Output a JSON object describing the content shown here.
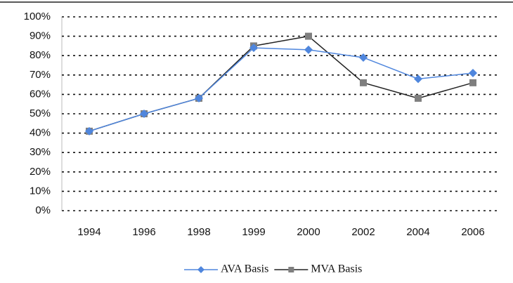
{
  "chart_data": {
    "type": "line",
    "categories": [
      "1994",
      "1996",
      "1998",
      "1999",
      "2000",
      "2002",
      "2004",
      "2006"
    ],
    "series": [
      {
        "name": "AVA Basis",
        "color": "#4f86dd",
        "marker_color": "#4f86dd",
        "marker": "diamond",
        "values": [
          41,
          50,
          58,
          84,
          83,
          79,
          68,
          71
        ]
      },
      {
        "name": "MVA Basis",
        "color": "#222222",
        "marker_color": "#7f7f7f",
        "marker": "square",
        "values": [
          41,
          50,
          58,
          85,
          90,
          66,
          58,
          66
        ]
      }
    ],
    "ylim": [
      0,
      100
    ],
    "yticks": [
      {
        "value": 0,
        "label": "0%"
      },
      {
        "value": 10,
        "label": "10%"
      },
      {
        "value": 20,
        "label": "20%"
      },
      {
        "value": 30,
        "label": "30%"
      },
      {
        "value": 40,
        "label": "40%"
      },
      {
        "value": 50,
        "label": "50%"
      },
      {
        "value": 60,
        "label": "60%"
      },
      {
        "value": 70,
        "label": "70%"
      },
      {
        "value": 80,
        "label": "80%"
      },
      {
        "value": 90,
        "label": "90%"
      },
      {
        "value": 100,
        "label": "100%"
      }
    ],
    "grid": true,
    "legend": "bottom"
  }
}
